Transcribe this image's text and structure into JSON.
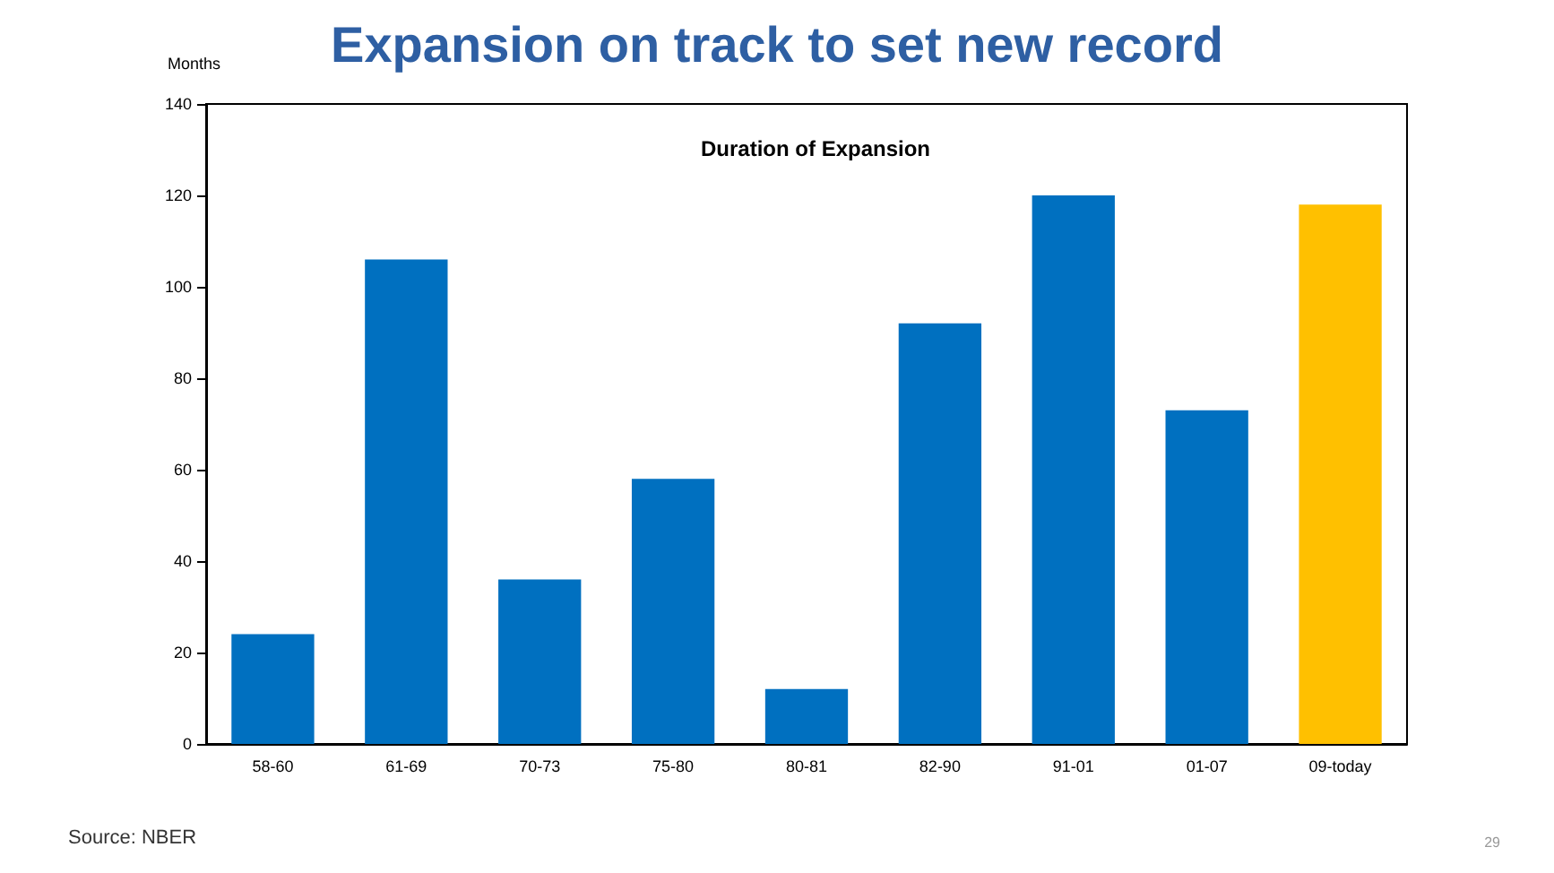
{
  "chart_data": {
    "type": "bar",
    "title": "Expansion on track to set new record",
    "subtitle": "Duration of Expansion",
    "ylabel": "Months",
    "categories": [
      "58-60",
      "61-69",
      "70-73",
      "75-80",
      "80-81",
      "82-90",
      "91-01",
      "01-07",
      "09-today"
    ],
    "values": [
      24,
      106,
      36,
      58,
      12,
      92,
      120,
      73,
      118
    ],
    "colors": [
      "#0070c0",
      "#0070c0",
      "#0070c0",
      "#0070c0",
      "#0070c0",
      "#0070c0",
      "#0070c0",
      "#0070c0",
      "#ffc000"
    ],
    "ylim": [
      0,
      140
    ],
    "yticks": [
      0,
      20,
      40,
      60,
      80,
      100,
      120,
      140
    ],
    "grid": false,
    "annotations": [
      "Source: NBER",
      "29"
    ]
  }
}
